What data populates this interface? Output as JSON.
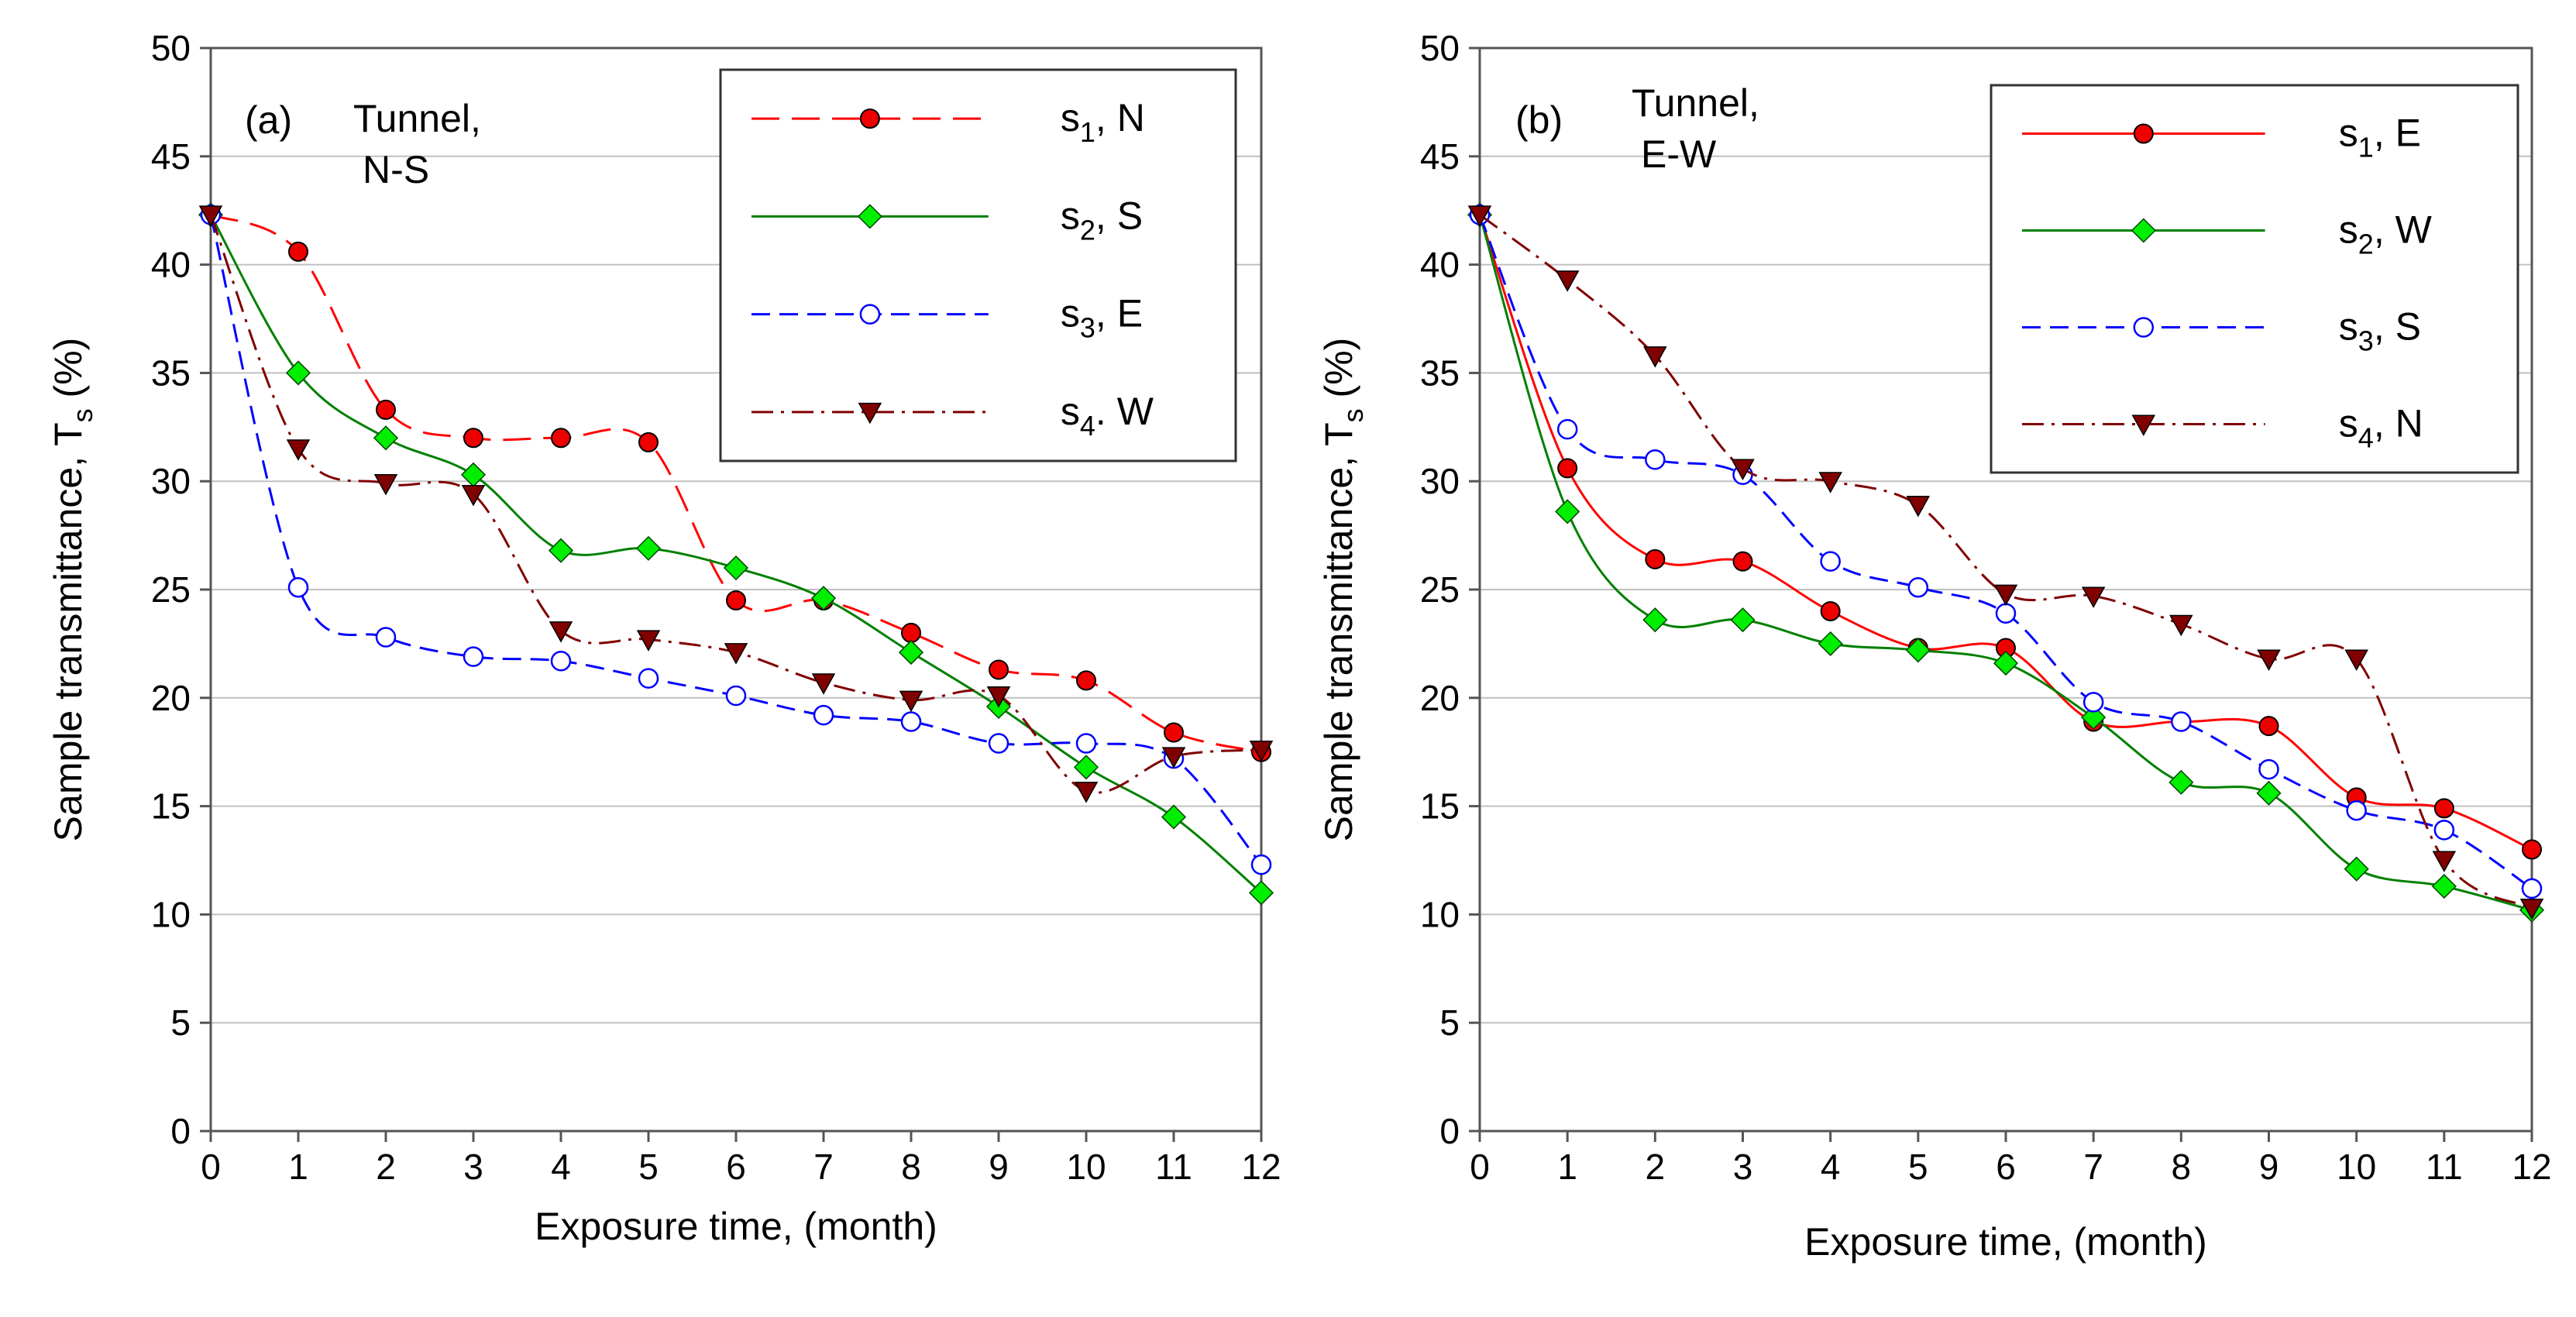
{
  "chart_data": [
    {
      "type": "line",
      "panel_label": "(a)",
      "annotation_lines": [
        "Tunnel,",
        "N-S"
      ],
      "xlabel": "Exposure time, (month)",
      "ylabel_main": "Sample transmittance, T",
      "ylabel_sub": "s",
      "ylabel_unit": " (%)",
      "xlim": [
        0,
        12
      ],
      "ylim": [
        0,
        50
      ],
      "x_ticks": [
        "0",
        "1",
        "2",
        "3",
        "4",
        "5",
        "6",
        "7",
        "8",
        "9",
        "10",
        "11",
        "12"
      ],
      "y_ticks": [
        "0",
        "5",
        "10",
        "15",
        "20",
        "25",
        "30",
        "35",
        "40",
        "45",
        "50"
      ],
      "grid": true,
      "legend_position": "top-right",
      "x": [
        0,
        1,
        2,
        3,
        4,
        5,
        6,
        7,
        8,
        9,
        10,
        11,
        12
      ],
      "series": [
        {
          "name": "s1, N",
          "label_main": "s",
          "label_sub": "1",
          "label_rest": ", N",
          "color": "#ff0000",
          "marker": "circle",
          "marker_fill": "#ee0000",
          "dash": "36 16",
          "values": [
            42.3,
            40.6,
            33.3,
            32.0,
            32.0,
            31.8,
            24.5,
            24.5,
            23.0,
            21.3,
            20.8,
            18.4,
            17.5
          ]
        },
        {
          "name": "s2, S",
          "label_main": "s",
          "label_sub": "2",
          "label_rest": ", S",
          "color": "#008000",
          "marker": "diamond",
          "marker_fill": "#00ee00",
          "dash": "",
          "values": [
            42.3,
            35.0,
            32.0,
            30.3,
            26.8,
            26.9,
            26.0,
            24.6,
            22.1,
            19.6,
            16.8,
            14.5,
            11.0
          ]
        },
        {
          "name": "s3, E",
          "label_main": "s",
          "label_sub": "3",
          "label_rest": ", E",
          "color": "#0000ff",
          "marker": "open-circle",
          "marker_fill": "#ffffff",
          "dash": "24 12",
          "values": [
            42.3,
            25.1,
            22.8,
            21.9,
            21.7,
            20.9,
            20.1,
            19.2,
            18.9,
            17.9,
            17.9,
            17.2,
            12.3
          ]
        },
        {
          "name": "s4. W",
          "label_main": "s",
          "label_sub": "4",
          "label_rest": ". W",
          "color": "#800000",
          "marker": "triangle-down",
          "marker_fill": "#800000",
          "dash": "28 10 4 10",
          "values": [
            42.3,
            31.5,
            29.9,
            29.4,
            23.1,
            22.7,
            22.1,
            20.7,
            19.9,
            20.1,
            15.7,
            17.3,
            17.6
          ]
        }
      ]
    },
    {
      "type": "line",
      "panel_label": "(b)",
      "annotation_lines": [
        "Tunnel,",
        "E-W"
      ],
      "xlabel": "Exposure time, (month)",
      "ylabel_main": "Sample transmittance, T",
      "ylabel_sub": "s",
      "ylabel_unit": " (%)",
      "xlim": [
        0,
        12
      ],
      "ylim": [
        0,
        50
      ],
      "x_ticks": [
        "0",
        "1",
        "2",
        "3",
        "4",
        "5",
        "6",
        "7",
        "8",
        "9",
        "10",
        "11",
        "12"
      ],
      "y_ticks": [
        "0",
        "5",
        "10",
        "15",
        "20",
        "25",
        "30",
        "35",
        "40",
        "45",
        "50"
      ],
      "grid": true,
      "legend_position": "top-right",
      "x": [
        0,
        1,
        2,
        3,
        4,
        5,
        6,
        7,
        8,
        9,
        10,
        11,
        12
      ],
      "series": [
        {
          "name": "s1, E",
          "label_main": "s",
          "label_sub": "1",
          "label_rest": ", E",
          "color": "#ff0000",
          "marker": "circle",
          "marker_fill": "#ee0000",
          "dash": "",
          "values": [
            42.3,
            30.6,
            26.4,
            26.3,
            24.0,
            22.3,
            22.3,
            18.9,
            18.9,
            18.7,
            15.4,
            14.9,
            13.0
          ]
        },
        {
          "name": "s2, W",
          "label_main": "s",
          "label_sub": "2",
          "label_rest": ", W",
          "color": "#008000",
          "marker": "diamond",
          "marker_fill": "#00ee00",
          "dash": "",
          "values": [
            42.3,
            28.6,
            23.6,
            23.6,
            22.5,
            22.2,
            21.6,
            19.1,
            16.1,
            15.6,
            12.1,
            11.3,
            10.2
          ]
        },
        {
          "name": "s3, S",
          "label_main": "s",
          "label_sub": "3",
          "label_rest": ", S",
          "color": "#0000ff",
          "marker": "open-circle",
          "marker_fill": "#ffffff",
          "dash": "24 12",
          "values": [
            42.3,
            32.4,
            31.0,
            30.3,
            26.3,
            25.1,
            23.9,
            19.8,
            18.9,
            16.7,
            14.8,
            13.9,
            11.2
          ]
        },
        {
          "name": "s4, N",
          "label_main": "s",
          "label_sub": "4",
          "label_rest": ", N",
          "color": "#800000",
          "marker": "triangle-down",
          "marker_fill": "#800000",
          "dash": "28 10 4 10",
          "values": [
            42.3,
            39.3,
            35.8,
            30.6,
            30.0,
            28.9,
            24.8,
            24.7,
            23.4,
            21.8,
            21.8,
            12.5,
            10.3
          ]
        }
      ]
    }
  ]
}
